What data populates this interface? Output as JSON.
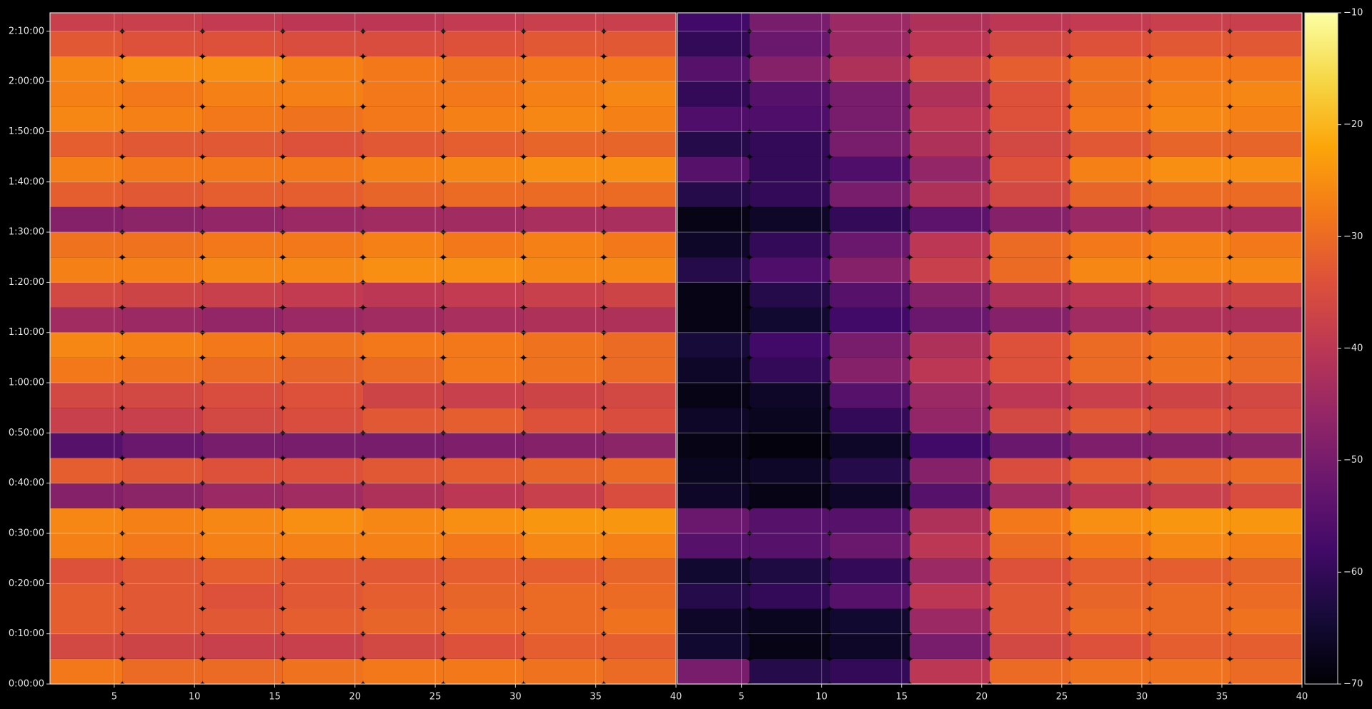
{
  "chart_data": [
    {
      "type": "heatmap",
      "colormap": "inferno",
      "grid": true,
      "x": [
        3,
        8,
        13,
        18,
        23,
        28,
        33,
        38
      ],
      "y": [
        150,
        450,
        750,
        1050,
        1350,
        1650,
        1950,
        2250,
        2550,
        2850,
        3150,
        3450,
        3750,
        4050,
        4350,
        4650,
        4950,
        5250,
        5550,
        5850,
        6150,
        6450,
        6750,
        7050,
        7350,
        7650,
        7950
      ],
      "xlim": [
        1,
        40
      ],
      "xticks": [
        5,
        10,
        15,
        20,
        25,
        30,
        35,
        40
      ],
      "ylim": [
        0,
        8020
      ],
      "yticks": [
        {
          "value": 0,
          "label": "0:00:00"
        },
        {
          "value": 600,
          "label": "0:10:00"
        },
        {
          "value": 1200,
          "label": "0:20:00"
        },
        {
          "value": 1800,
          "label": "0:30:00"
        },
        {
          "value": 2400,
          "label": "0:40:00"
        },
        {
          "value": 3000,
          "label": "0:50:00"
        },
        {
          "value": 3600,
          "label": "1:00:00"
        },
        {
          "value": 4200,
          "label": "1:10:00"
        },
        {
          "value": 4800,
          "label": "1:20:00"
        },
        {
          "value": 5400,
          "label": "1:30:00"
        },
        {
          "value": 6000,
          "label": "1:40:00"
        },
        {
          "value": 6600,
          "label": "1:50:00"
        },
        {
          "value": 7200,
          "label": "2:00:00"
        },
        {
          "value": 7800,
          "label": "2:10:00"
        }
      ],
      "z": [
        [
          -28,
          -30,
          -30,
          -29,
          -28,
          -28,
          -29,
          -30
        ],
        [
          -36,
          -37,
          -38,
          -38,
          -36,
          -34,
          -32,
          -32
        ],
        [
          -32,
          -33,
          -33,
          -32,
          -31,
          -30,
          -30,
          -29
        ],
        [
          -32,
          -33,
          -34,
          -33,
          -32,
          -31,
          -30,
          -30
        ],
        [
          -34,
          -33,
          -32,
          -33,
          -33,
          -32,
          -32,
          -31
        ],
        [
          -27,
          -28,
          -27,
          -27,
          -27,
          -28,
          -26,
          -27
        ],
        [
          -26,
          -27,
          -26,
          -25,
          -26,
          -25,
          -24,
          -24
        ],
        [
          -48,
          -47,
          -45,
          -44,
          -42,
          -40,
          -38,
          -35
        ],
        [
          -32,
          -33,
          -34,
          -34,
          -33,
          -32,
          -31,
          -30
        ],
        [
          -55,
          -52,
          -50,
          -50,
          -50,
          -49,
          -48,
          -47
        ],
        [
          -38,
          -38,
          -36,
          -35,
          -33,
          -32,
          -34,
          -35
        ],
        [
          -36,
          -36,
          -35,
          -34,
          -37,
          -38,
          -37,
          -36
        ],
        [
          -28,
          -29,
          -30,
          -31,
          -30,
          -28,
          -29,
          -30
        ],
        [
          -26,
          -27,
          -28,
          -29,
          -28,
          -28,
          -29,
          -30
        ],
        [
          -44,
          -45,
          -46,
          -45,
          -44,
          -43,
          -42,
          -42
        ],
        [
          -36,
          -37,
          -38,
          -39,
          -40,
          -39,
          -38,
          -37
        ],
        [
          -27,
          -27,
          -26,
          -26,
          -25,
          -25,
          -26,
          -26
        ],
        [
          -29,
          -29,
          -28,
          -28,
          -27,
          -28,
          -27,
          -28
        ],
        [
          -48,
          -47,
          -46,
          -45,
          -44,
          -44,
          -43,
          -43
        ],
        [
          -32,
          -33,
          -32,
          -32,
          -31,
          -30,
          -30,
          -30
        ],
        [
          -27,
          -28,
          -28,
          -28,
          -27,
          -26,
          -25,
          -25
        ],
        [
          -32,
          -33,
          -33,
          -34,
          -33,
          -32,
          -31,
          -31
        ],
        [
          -26,
          -27,
          -28,
          -29,
          -28,
          -27,
          -26,
          -27
        ],
        [
          -27,
          -28,
          -27,
          -27,
          -28,
          -28,
          -27,
          -26
        ],
        [
          -26,
          -25,
          -25,
          -27,
          -28,
          -29,
          -28,
          -28
        ],
        [
          -33,
          -34,
          -34,
          -35,
          -35,
          -34,
          -33,
          -33
        ],
        [
          -38,
          -38,
          -39,
          -40,
          -40,
          -39,
          -38,
          -38
        ]
      ]
    },
    {
      "type": "heatmap",
      "colormap": "inferno",
      "grid": true,
      "sharey": true,
      "x": [
        3,
        8,
        13,
        18,
        23,
        28,
        33,
        38
      ],
      "y": [
        150,
        450,
        750,
        1050,
        1350,
        1650,
        1950,
        2250,
        2550,
        2850,
        3150,
        3450,
        3750,
        4050,
        4350,
        4650,
        4950,
        5250,
        5550,
        5850,
        6150,
        6450,
        6750,
        7050,
        7350,
        7650,
        7950
      ],
      "xlim": [
        1,
        40
      ],
      "xticks": [
        5,
        10,
        15,
        20,
        25,
        30,
        35,
        40
      ],
      "z": [
        [
          -50,
          -62,
          -60,
          -40,
          -30,
          -29,
          -29,
          -30
        ],
        [
          -65,
          -68,
          -66,
          -50,
          -36,
          -34,
          -32,
          -32
        ],
        [
          -66,
          -67,
          -65,
          -45,
          -33,
          -30,
          -30,
          -29
        ],
        [
          -62,
          -60,
          -55,
          -40,
          -33,
          -31,
          -30,
          -30
        ],
        [
          -65,
          -63,
          -60,
          -45,
          -34,
          -32,
          -32,
          -31
        ],
        [
          -55,
          -55,
          -52,
          -40,
          -30,
          -28,
          -26,
          -27
        ],
        [
          -52,
          -55,
          -55,
          -42,
          -28,
          -25,
          -24,
          -24
        ],
        [
          -66,
          -68,
          -66,
          -55,
          -44,
          -40,
          -38,
          -35
        ],
        [
          -67,
          -66,
          -62,
          -48,
          -35,
          -32,
          -31,
          -30
        ],
        [
          -68,
          -69,
          -66,
          -58,
          -52,
          -49,
          -48,
          -47
        ],
        [
          -66,
          -67,
          -60,
          -46,
          -36,
          -33,
          -34,
          -35
        ],
        [
          -68,
          -66,
          -55,
          -45,
          -40,
          -38,
          -37,
          -36
        ],
        [
          -66,
          -60,
          -48,
          -40,
          -34,
          -30,
          -29,
          -30
        ],
        [
          -64,
          -58,
          -50,
          -42,
          -34,
          -30,
          -29,
          -30
        ],
        [
          -68,
          -65,
          -58,
          -52,
          -48,
          -44,
          -42,
          -42
        ],
        [
          -68,
          -62,
          -55,
          -48,
          -42,
          -40,
          -38,
          -37
        ],
        [
          -62,
          -56,
          -48,
          -38,
          -30,
          -26,
          -26,
          -26
        ],
        [
          -66,
          -60,
          -52,
          -40,
          -30,
          -28,
          -27,
          -28
        ],
        [
          -68,
          -66,
          -60,
          -54,
          -48,
          -45,
          -43,
          -43
        ],
        [
          -62,
          -60,
          -50,
          -42,
          -36,
          -31,
          -30,
          -30
        ],
        [
          -55,
          -60,
          -56,
          -46,
          -34,
          -27,
          -25,
          -25
        ],
        [
          -62,
          -60,
          -50,
          -42,
          -36,
          -33,
          -31,
          -31
        ],
        [
          -56,
          -56,
          -50,
          -40,
          -34,
          -28,
          -26,
          -27
        ],
        [
          -60,
          -55,
          -50,
          -42,
          -34,
          -29,
          -27,
          -26
        ],
        [
          -55,
          -48,
          -42,
          -36,
          -32,
          -29,
          -28,
          -28
        ],
        [
          -60,
          -52,
          -45,
          -40,
          -36,
          -34,
          -33,
          -33
        ],
        [
          -58,
          -50,
          -45,
          -42,
          -40,
          -39,
          -38,
          -38
        ]
      ]
    },
    {
      "type": "colorbar",
      "colormap": "inferno",
      "lim": [
        -70,
        -10
      ],
      "ticks": [
        {
          "value": -70,
          "label": "−70"
        },
        {
          "value": -60,
          "label": "−60"
        },
        {
          "value": -50,
          "label": "−50"
        },
        {
          "value": -40,
          "label": "−40"
        },
        {
          "value": -30,
          "label": "−30"
        },
        {
          "value": -20,
          "label": "−20"
        },
        {
          "value": -10,
          "label": "−10"
        }
      ]
    }
  ]
}
